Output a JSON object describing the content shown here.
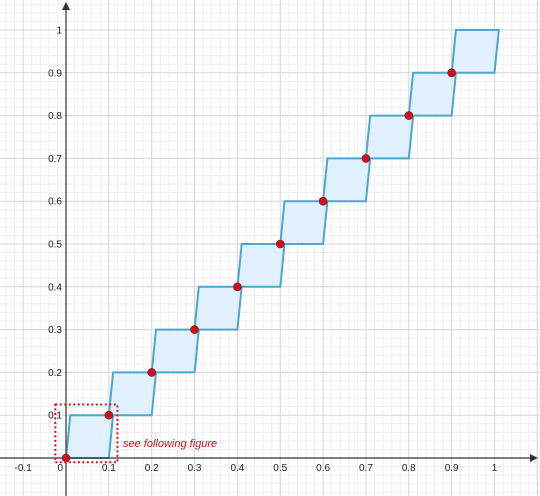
{
  "chart_data": {
    "type": "line",
    "title": "",
    "xlabel": "",
    "ylabel": "",
    "xlim": [
      -0.15,
      1.1
    ],
    "ylim": [
      -0.03,
      1.05
    ],
    "grid": true,
    "x_ticks": [
      -0.1,
      0,
      0.1,
      0.2,
      0.3,
      0.4,
      0.5,
      0.6,
      0.7,
      0.8,
      0.9,
      1
    ],
    "x_tick_labels": [
      "-0.1",
      "0",
      "0.1",
      "0.2",
      "0.3",
      "0.4",
      "0.5",
      "0.6",
      "0.7",
      "0.8",
      "0.9",
      "1"
    ],
    "y_ticks": [
      0.1,
      0.2,
      0.3,
      0.4,
      0.5,
      0.6,
      0.7,
      0.8,
      0.9,
      1
    ],
    "y_tick_labels": [
      "0.1",
      "0.2",
      "0.3",
      "0.4",
      "0.5",
      "0.6",
      "0.7",
      "0.8",
      "0.9",
      "1"
    ],
    "step_width": 0.1,
    "parallelogram_offset": 0.01,
    "points": {
      "x": [
        0,
        0.1,
        0.2,
        0.3,
        0.4,
        0.5,
        0.6,
        0.7,
        0.8,
        0.9
      ],
      "y": [
        0,
        0.1,
        0.2,
        0.3,
        0.4,
        0.5,
        0.6,
        0.7,
        0.8,
        0.9
      ]
    },
    "highlight_box": {
      "x": [
        -0.025,
        0.12
      ],
      "y": [
        -0.01,
        0.125
      ]
    },
    "annotation": "see following figure",
    "colors": {
      "outline": "#4aa8d0",
      "fill": "#dcefff",
      "points": "#c8161d",
      "highlight": "#c8161d",
      "annotation": "#c0161c",
      "grid_major": "#d8d8d8",
      "grid_minor": "#efefef",
      "axes": "#333333"
    }
  }
}
